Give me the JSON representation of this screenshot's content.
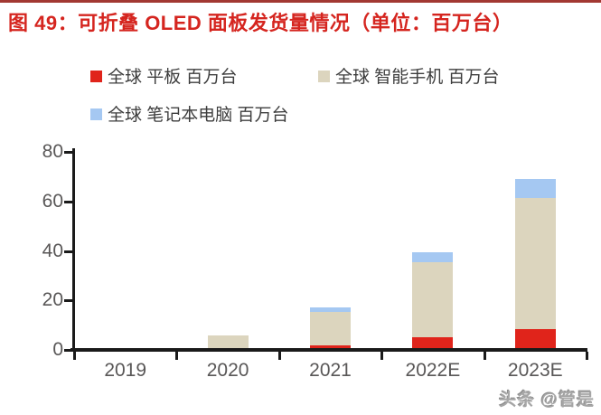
{
  "figure": {
    "title": "图 49：可折叠 OLED 面板发货量情况（单位：百万台）",
    "watermark": "头条 @管是"
  },
  "colors": {
    "top_border": "#a23832",
    "title_red": "#d5251f",
    "tablet_red": "#e0241b",
    "smartphone_beige": "#dcd5be",
    "laptop_blue": "#a5c8f2",
    "axis_line": "#1a1a1a",
    "axis_label_gray": "#595757"
  },
  "legend": {
    "items": [
      {
        "key": "tablet",
        "label": "全球 平板 百万台",
        "color": "#e0241b"
      },
      {
        "key": "smartphone",
        "label": "全球 智能手机 百万台",
        "color": "#dcd5be"
      },
      {
        "key": "laptop",
        "label": "全球 笔记本电脑 百万台",
        "color": "#a5c8f2"
      }
    ]
  },
  "chart_data": {
    "type": "bar",
    "stacked": true,
    "title": "可折叠 OLED 面板发货量情况",
    "unit": "百万台",
    "categories": [
      "2019",
      "2020",
      "2021",
      "2022E",
      "2023E"
    ],
    "series": [
      {
        "key": "tablet",
        "name": "全球 平板 百万台",
        "color": "#e0241b",
        "values": [
          0,
          0,
          2,
          5,
          8.5
        ]
      },
      {
        "key": "smartphone",
        "name": "全球 智能手机 百万台",
        "color": "#dcd5be",
        "values": [
          0,
          6,
          13.5,
          30.5,
          53
        ]
      },
      {
        "key": "laptop",
        "name": "全球 笔记本电脑 百万台",
        "color": "#a5c8f2",
        "values": [
          0,
          0,
          1.5,
          4,
          7.5
        ]
      }
    ],
    "totals": [
      0,
      6,
      17,
      39.5,
      69
    ],
    "xlabel": "",
    "ylabel": "",
    "ylim": [
      0,
      80
    ],
    "yticks": [
      0,
      20,
      40,
      60,
      80
    ],
    "grid": false,
    "legend_position": "top-left"
  }
}
